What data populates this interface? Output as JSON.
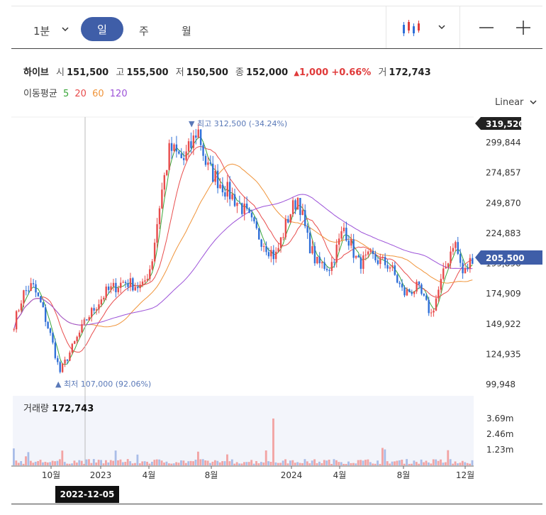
{
  "toolbar": {
    "interval": "1분",
    "periods": [
      "일",
      "주",
      "월"
    ],
    "selected_period": "일"
  },
  "stock": {
    "name": "하이브",
    "open_label": "시",
    "open": "151,500",
    "high_label": "고",
    "high": "155,500",
    "low_label": "저",
    "low": "150,500",
    "close_label": "종",
    "close": "152,000",
    "change": "1,000",
    "change_pct": "+0.66%",
    "volume_label": "거",
    "volume": "172,743"
  },
  "moving_average": {
    "label": "이동평균",
    "periods": [
      "5",
      "20",
      "60",
      "120"
    ],
    "colors": [
      "#3aa63a",
      "#e84c4c",
      "#f0943a",
      "#9c52d8"
    ]
  },
  "scale_mode": "Linear",
  "chart_data": {
    "type": "candlestick",
    "yticks": [
      299844,
      274857,
      249870,
      224883,
      199896,
      174909,
      149922,
      124935,
      99948
    ],
    "ylim": [
      99948,
      319520
    ],
    "x_ticks": [
      "10월",
      "2023",
      "4월",
      "8월",
      "2024",
      "4월",
      "8월",
      "12월"
    ],
    "current_price_label": "205,500",
    "top_price_label": "319,520",
    "high_annotation": "최고 312,500 (-34.24%)",
    "low_annotation": "최저 107,000 (92.06%)",
    "volume_yticks": [
      "3.69m",
      "2.46m",
      "1.23m"
    ],
    "price_path_keypoints": [
      [
        0,
        150000
      ],
      [
        0.02,
        175000
      ],
      [
        0.04,
        182000
      ],
      [
        0.06,
        165000
      ],
      [
        0.08,
        140000
      ],
      [
        0.1,
        110000
      ],
      [
        0.12,
        125000
      ],
      [
        0.16,
        155000
      ],
      [
        0.2,
        176000
      ],
      [
        0.24,
        185000
      ],
      [
        0.28,
        180000
      ],
      [
        0.3,
        200000
      ],
      [
        0.32,
        255000
      ],
      [
        0.34,
        295000
      ],
      [
        0.37,
        285000
      ],
      [
        0.39,
        300000
      ],
      [
        0.4,
        312500
      ],
      [
        0.42,
        280000
      ],
      [
        0.46,
        262000
      ],
      [
        0.5,
        245000
      ],
      [
        0.53,
        225000
      ],
      [
        0.57,
        205000
      ],
      [
        0.6,
        240000
      ],
      [
        0.62,
        255000
      ],
      [
        0.64,
        220000
      ],
      [
        0.66,
        200000
      ],
      [
        0.69,
        197000
      ],
      [
        0.72,
        230000
      ],
      [
        0.75,
        200000
      ],
      [
        0.78,
        205000
      ],
      [
        0.82,
        198000
      ],
      [
        0.85,
        175000
      ],
      [
        0.88,
        180000
      ],
      [
        0.91,
        158000
      ],
      [
        0.94,
        195000
      ],
      [
        0.96,
        220000
      ],
      [
        0.98,
        190000
      ],
      [
        1.0,
        205500
      ]
    ]
  },
  "volume": {
    "label": "거래량",
    "value": "172,743"
  },
  "crosshair_date": "2022-12-05"
}
